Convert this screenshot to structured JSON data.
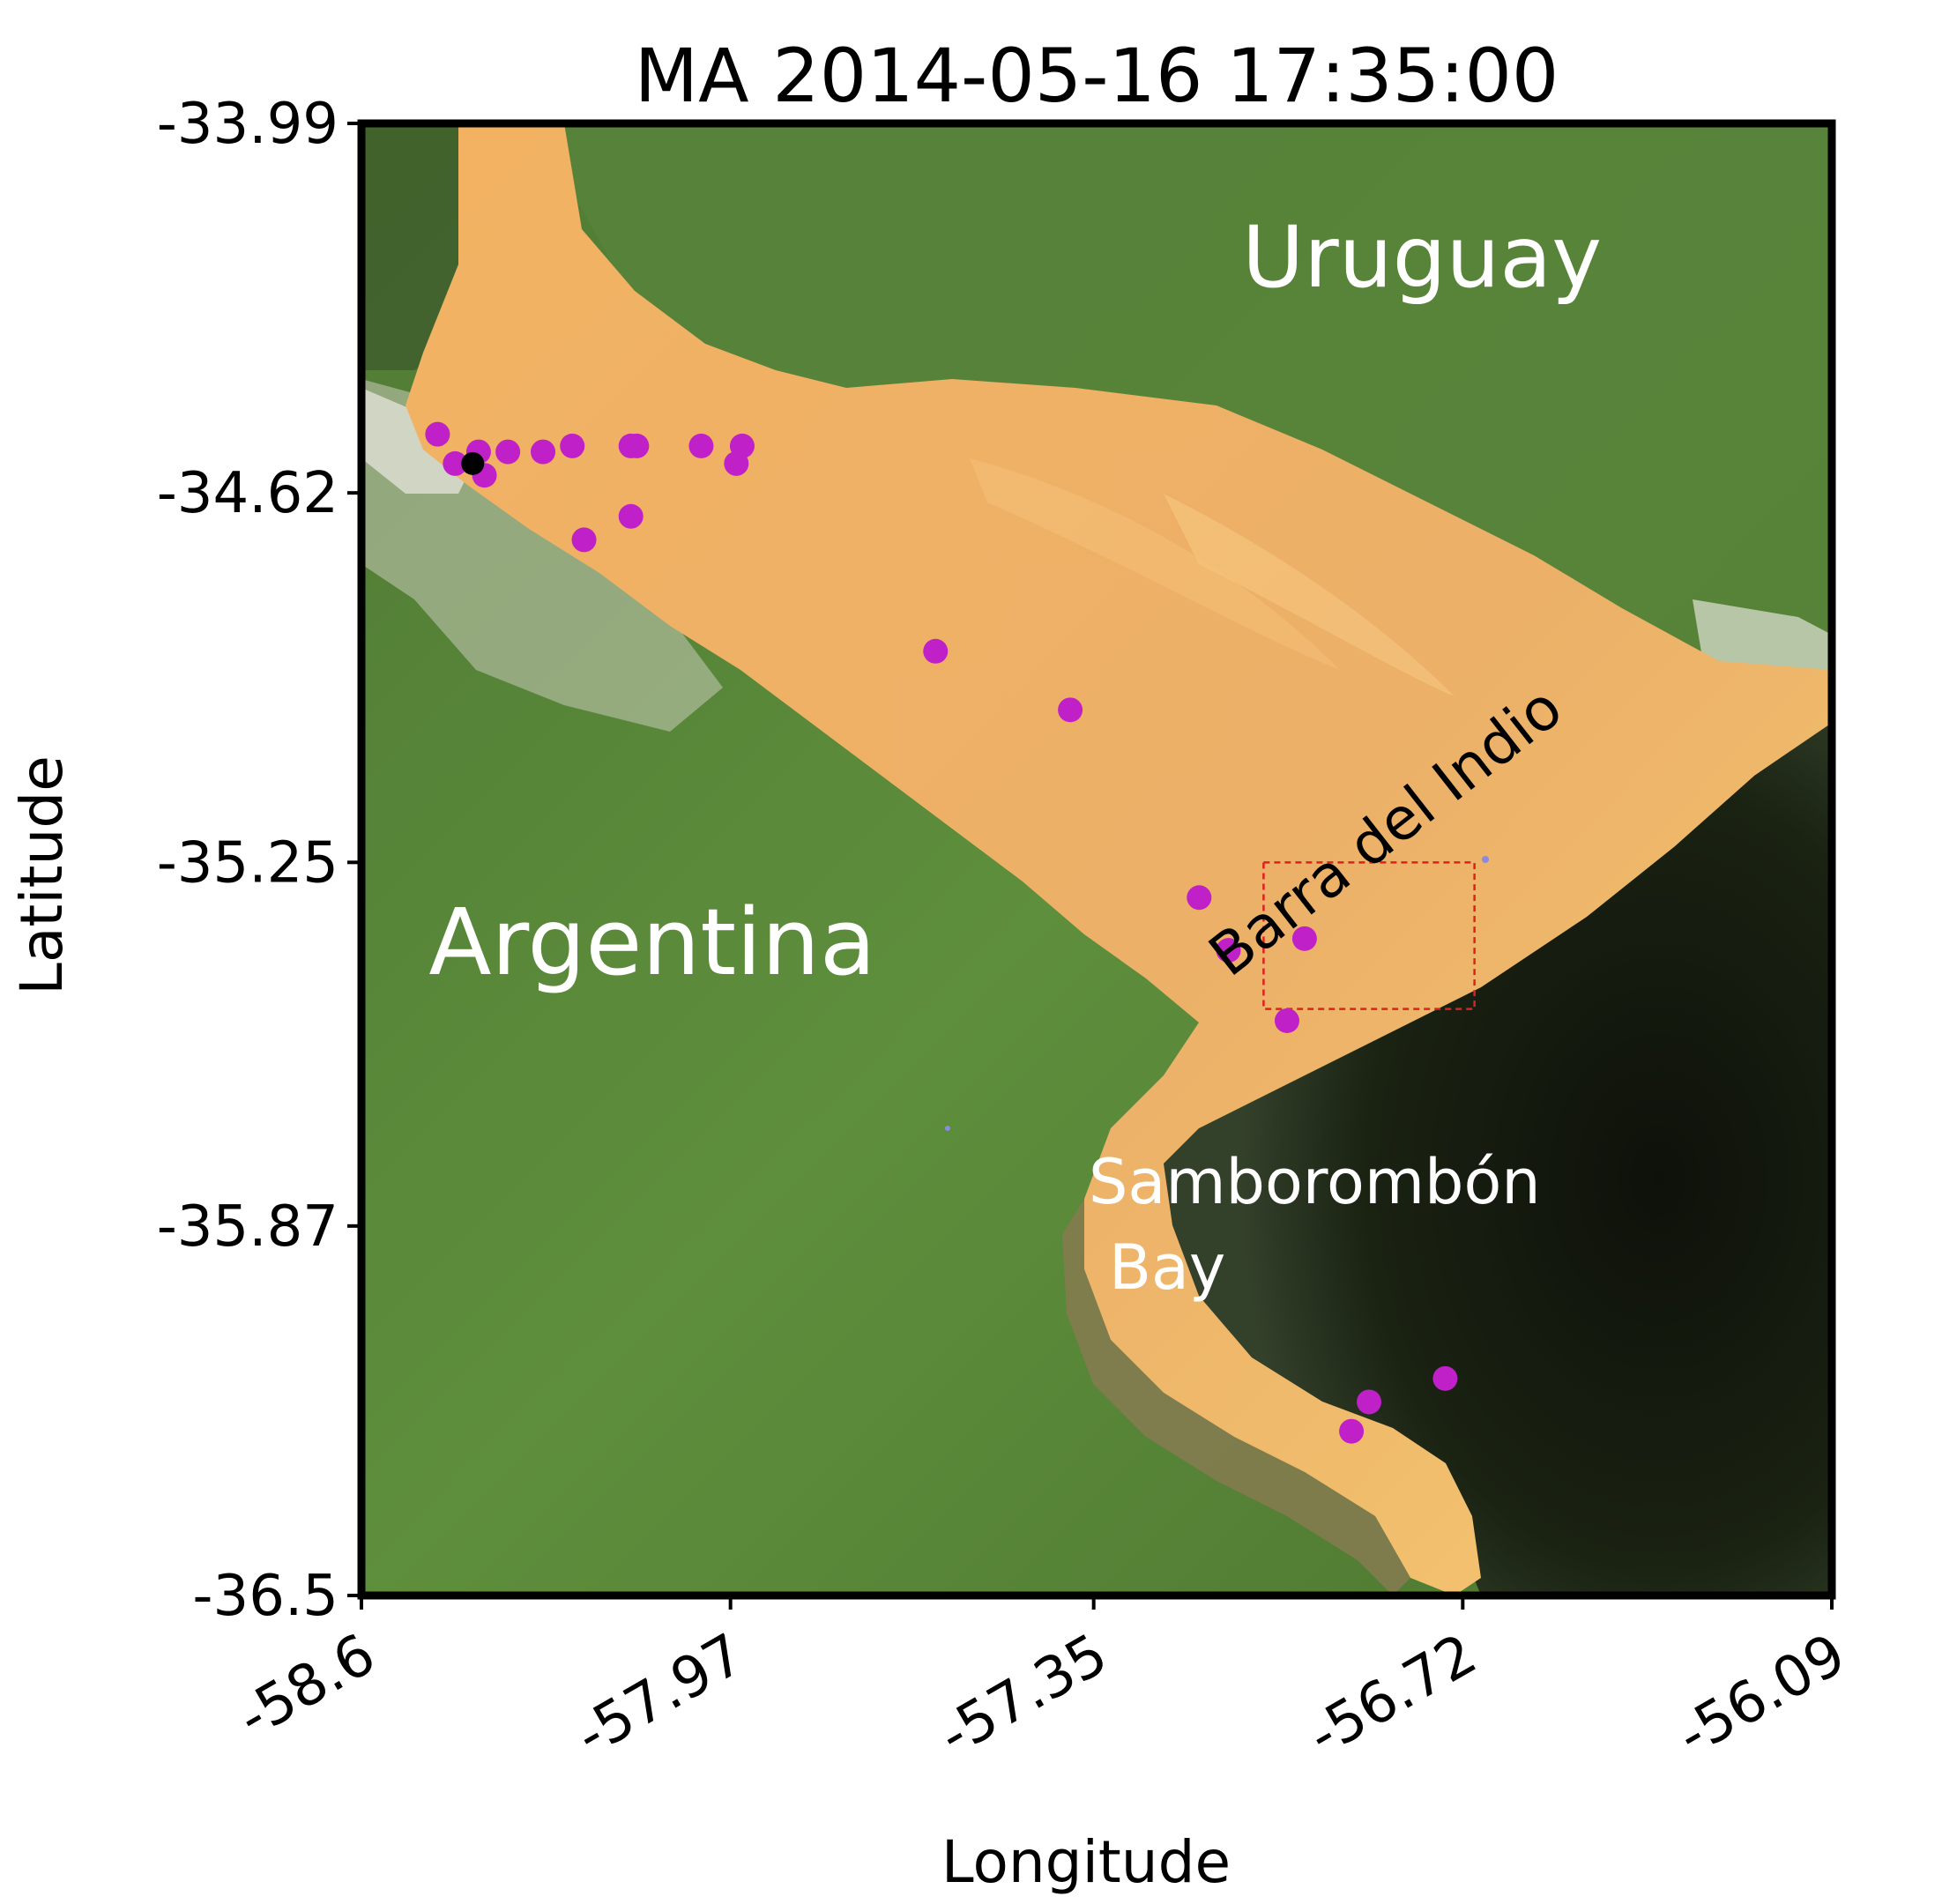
{
  "title": "MA 2014-05-16 17:35:00",
  "xlabel": "Longitude",
  "ylabel": "Latitude",
  "xlim": [
    -58.6,
    -56.09
  ],
  "ylim": [
    -36.5,
    -33.99
  ],
  "x_ticks": [
    "-58.6",
    "-57.97",
    "-57.35",
    "-56.72",
    "-56.09"
  ],
  "y_ticks": [
    "-33.99",
    "-34.62",
    "-35.25",
    "-35.87",
    "-36.5"
  ],
  "labels": {
    "uruguay": "Uruguay",
    "argentina": "Argentina",
    "barra": "Barra del Indio",
    "samborombon_1": "Samborombón",
    "samborombon_2": "Bay"
  },
  "colors": {
    "land": "#5c8a3a",
    "turbid_water": "#f0b060",
    "ocean": "#14180e",
    "station": "#c020c8",
    "highlight_station": "#000000",
    "box": "#e02020"
  },
  "chart_data": {
    "type": "scatter",
    "x_unit": "degrees longitude",
    "y_unit": "degrees latitude",
    "stations": [
      {
        "lon": -58.47,
        "lat": -34.52
      },
      {
        "lon": -58.44,
        "lat": -34.57
      },
      {
        "lon": -58.4,
        "lat": -34.55
      },
      {
        "lon": -58.39,
        "lat": -34.59
      },
      {
        "lon": -58.35,
        "lat": -34.55
      },
      {
        "lon": -58.29,
        "lat": -34.55
      },
      {
        "lon": -58.24,
        "lat": -34.54
      },
      {
        "lon": -58.14,
        "lat": -34.54
      },
      {
        "lon": -58.13,
        "lat": -34.54
      },
      {
        "lon": -58.02,
        "lat": -34.54
      },
      {
        "lon": -57.96,
        "lat": -34.57
      },
      {
        "lon": -57.95,
        "lat": -34.54
      },
      {
        "lon": -58.14,
        "lat": -34.66
      },
      {
        "lon": -58.22,
        "lat": -34.7
      },
      {
        "lon": -57.62,
        "lat": -34.89
      },
      {
        "lon": -57.39,
        "lat": -34.99
      },
      {
        "lon": -57.17,
        "lat": -35.31
      },
      {
        "lon": -57.12,
        "lat": -35.4
      },
      {
        "lon": -56.99,
        "lat": -35.38
      },
      {
        "lon": -57.02,
        "lat": -35.52
      },
      {
        "lon": -56.75,
        "lat": -36.13
      },
      {
        "lon": -56.88,
        "lat": -36.17
      },
      {
        "lon": -56.91,
        "lat": -36.22
      }
    ],
    "highlight_station": {
      "lon": -58.41,
      "lat": -34.57
    },
    "box": {
      "lon_min": -57.06,
      "lon_max": -56.7,
      "lat_min": -35.5,
      "lat_max": -35.25
    }
  }
}
